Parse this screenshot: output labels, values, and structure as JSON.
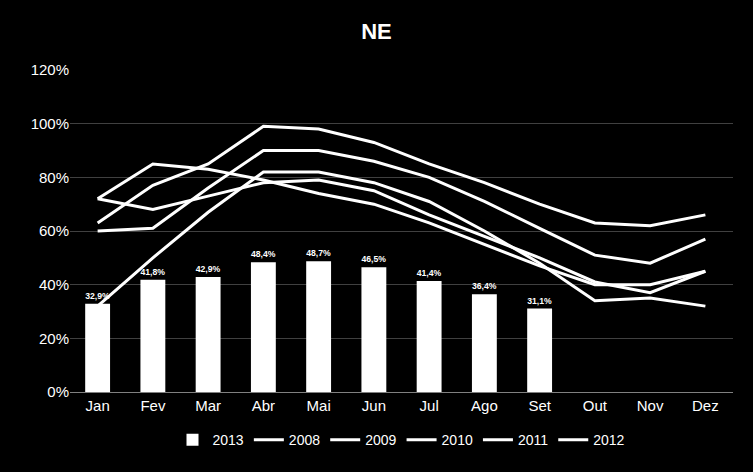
{
  "chart_data": {
    "type": "bar",
    "title": "NE",
    "categories": [
      "Jan",
      "Fev",
      "Mar",
      "Abr",
      "Mai",
      "Jun",
      "Jul",
      "Ago",
      "Set",
      "Out",
      "Nov",
      "Dez"
    ],
    "series": [
      {
        "name": "2013",
        "type": "bar",
        "color": "#ffffff",
        "values": [
          32.9,
          41.8,
          42.9,
          48.4,
          48.7,
          46.5,
          41.4,
          36.4,
          31.1,
          null,
          null,
          null
        ],
        "value_labels": [
          "32,9%",
          "41,8%",
          "42,9%",
          "48,4%",
          "48,7%",
          "46,5%",
          "41,4%",
          "36,4%",
          "31,1%",
          null,
          null,
          null
        ]
      },
      {
        "name": "2008",
        "type": "line",
        "color": "#ffffff",
        "line_style": "solid",
        "values": [
          63,
          77,
          85,
          99,
          98,
          93,
          85,
          78,
          70,
          63,
          62,
          66
        ]
      },
      {
        "name": "2009",
        "type": "line",
        "color": "#ffffff",
        "line_style": "solid",
        "values": [
          72,
          85,
          83,
          79,
          74,
          70,
          63,
          55,
          47,
          40,
          40,
          45
        ]
      },
      {
        "name": "2010",
        "type": "line",
        "color": "#ffffff",
        "line_style": "solid",
        "values": [
          72,
          68,
          73,
          78,
          79,
          75,
          66,
          58,
          50,
          41,
          37,
          45
        ]
      },
      {
        "name": "2011",
        "type": "line",
        "color": "#ffffff",
        "line_style": "solid",
        "values": [
          60,
          61,
          76,
          90,
          90,
          86,
          80,
          71,
          61,
          51,
          48,
          57
        ]
      },
      {
        "name": "2012",
        "type": "line",
        "color": "#ffffff",
        "line_style": "solid",
        "values": [
          32,
          50,
          67,
          82,
          82,
          78,
          71,
          60,
          48,
          34,
          35,
          32
        ]
      }
    ],
    "ylim": [
      0,
      120
    ],
    "yticks": [
      {
        "value": 0,
        "label": "0%"
      },
      {
        "value": 20,
        "label": "20%"
      },
      {
        "value": 40,
        "label": "40%"
      },
      {
        "value": 60,
        "label": "60%"
      },
      {
        "value": 80,
        "label": "80%"
      },
      {
        "value": 100,
        "label": "100%"
      },
      {
        "value": 120,
        "label": "120%"
      }
    ],
    "grid": true,
    "legend": "bottom",
    "data_labels": true
  }
}
